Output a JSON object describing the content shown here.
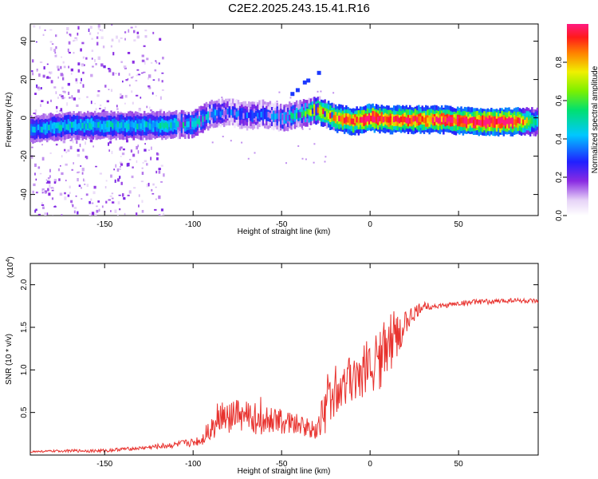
{
  "title": "C2E2.2025.243.15.41.R16",
  "chart_data": [
    {
      "type": "heatmap",
      "name": "spectrogram",
      "xlabel": "Height of straight line (km)",
      "ylabel": "Frequency (Hz)",
      "xlim": [
        -192,
        95
      ],
      "ylim": [
        -51,
        49
      ],
      "xticks": [
        -150,
        -100,
        -50,
        0,
        50
      ],
      "yticks": [
        -40,
        -20,
        0,
        20,
        40
      ],
      "ridge": {
        "x": [
          -192,
          -170,
          -150,
          -130,
          -115,
          -100,
          -90,
          -80,
          -70,
          -60,
          -50,
          -40,
          -30,
          -20,
          -10,
          0,
          10,
          20,
          40,
          60,
          80,
          95
        ],
        "freq": [
          -6,
          -4,
          -4,
          -4,
          -4,
          -3,
          2,
          3,
          1,
          2,
          0,
          2,
          4,
          0,
          -2,
          0,
          -1,
          -1,
          -1,
          -2,
          -2,
          -2
        ],
        "amplitude": [
          0.35,
          0.4,
          0.4,
          0.4,
          0.4,
          0.45,
          0.35,
          0.3,
          0.3,
          0.3,
          0.4,
          0.45,
          0.7,
          0.8,
          0.85,
          0.9,
          0.85,
          0.85,
          0.85,
          0.95,
          0.95,
          0.35
        ]
      },
      "colorbar": {
        "label": "Normalized spectral amplitude",
        "ticks": [
          "0.0",
          "0.2",
          "0.4",
          "0.6",
          "0.8"
        ],
        "range": [
          0,
          1
        ]
      }
    },
    {
      "type": "line",
      "name": "snr",
      "xlabel": "Height of straight line (km)",
      "ylabel": "SNR (10 * v/v)",
      "yscale_note": "(x10",
      "yscale_exp": "4",
      "multiplier": 10000,
      "xlim": [
        -192,
        95
      ],
      "ylim": [
        0,
        2.25
      ],
      "xticks": [
        -150,
        -100,
        -50,
        0,
        50
      ],
      "yticks": [
        "0.5",
        "1.0",
        "1.5",
        "2.0"
      ],
      "color": "#e8322e",
      "series": [
        {
          "name": "SNR",
          "x": [
            -192,
            -170,
            -150,
            -140,
            -130,
            -120,
            -110,
            -100,
            -95,
            -90,
            -85,
            -80,
            -70,
            -60,
            -50,
            -40,
            -30,
            -25,
            -20,
            -15,
            -10,
            -5,
            0,
            5,
            7,
            10,
            15,
            20,
            25,
            30,
            40,
            50,
            60,
            70,
            80,
            95
          ],
          "y": [
            0.04,
            0.05,
            0.05,
            0.07,
            0.08,
            0.1,
            0.12,
            0.15,
            0.18,
            0.35,
            0.45,
            0.45,
            0.45,
            0.42,
            0.4,
            0.35,
            0.3,
            0.6,
            0.75,
            0.85,
            0.95,
            1.0,
            1.05,
            1.1,
            1.2,
            1.2,
            1.4,
            1.55,
            1.65,
            1.75,
            1.75,
            1.78,
            1.8,
            1.8,
            1.82,
            1.8
          ],
          "noise": [
            0.01,
            0.015,
            0.02,
            0.02,
            0.02,
            0.03,
            0.04,
            0.05,
            0.07,
            0.18,
            0.2,
            0.2,
            0.2,
            0.18,
            0.15,
            0.12,
            0.12,
            0.35,
            0.3,
            0.3,
            0.35,
            0.35,
            0.3,
            0.35,
            0.4,
            0.3,
            0.25,
            0.15,
            0.1,
            0.05,
            0.03,
            0.03,
            0.03,
            0.03,
            0.03,
            0.03
          ]
        }
      ]
    }
  ]
}
